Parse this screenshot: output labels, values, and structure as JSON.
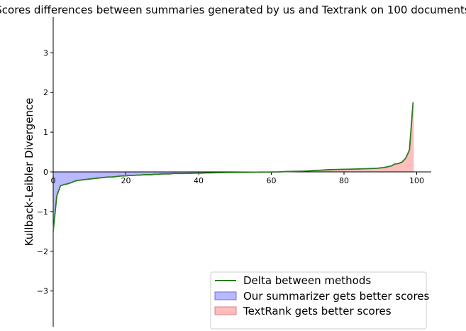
{
  "chart_data": {
    "type": "line",
    "title": "Scores differences between summaries generated by us and Textrank on 100 documents",
    "xlabel": "",
    "ylabel": "Kullback-Leibler Divergence",
    "xlim": [
      0,
      104
    ],
    "ylim": [
      -3.9,
      3.9
    ],
    "xticks": [
      0,
      20,
      40,
      60,
      80,
      100
    ],
    "yticks": [
      -3,
      -2,
      -1,
      0,
      1,
      2,
      3
    ],
    "grid": false,
    "legend_position": "lower-right",
    "colors": {
      "line": "#2a7a1e",
      "negative_fill": "#b9b9ff",
      "negative_edge": "#6f6fe6",
      "positive_fill": "#ffbdbd",
      "positive_edge": "#e08080"
    },
    "series": [
      {
        "name": "Delta between methods",
        "x": [
          0,
          1,
          2,
          3,
          4,
          5,
          6,
          7,
          8,
          9,
          10,
          11,
          12,
          13,
          14,
          15,
          16,
          17,
          18,
          19,
          20,
          21,
          22,
          23,
          24,
          25,
          26,
          27,
          28,
          29,
          30,
          31,
          32,
          33,
          34,
          35,
          36,
          37,
          38,
          39,
          40,
          41,
          42,
          43,
          44,
          45,
          46,
          47,
          48,
          49,
          50,
          51,
          52,
          53,
          54,
          55,
          56,
          57,
          58,
          59,
          60,
          61,
          62,
          63,
          64,
          65,
          66,
          67,
          68,
          69,
          70,
          71,
          72,
          73,
          74,
          75,
          76,
          77,
          78,
          79,
          80,
          81,
          82,
          83,
          84,
          85,
          86,
          87,
          88,
          89,
          90,
          91,
          92,
          93,
          94,
          95,
          96,
          97,
          98,
          99
        ],
        "values": [
          -1.5,
          -0.6,
          -0.35,
          -0.32,
          -0.3,
          -0.27,
          -0.23,
          -0.21,
          -0.2,
          -0.19,
          -0.18,
          -0.17,
          -0.16,
          -0.15,
          -0.14,
          -0.13,
          -0.13,
          -0.12,
          -0.11,
          -0.1,
          -0.1,
          -0.09,
          -0.09,
          -0.08,
          -0.08,
          -0.07,
          -0.07,
          -0.07,
          -0.06,
          -0.06,
          -0.05,
          -0.05,
          -0.05,
          -0.04,
          -0.04,
          -0.04,
          -0.04,
          -0.035,
          -0.035,
          -0.03,
          -0.03,
          -0.03,
          -0.025,
          -0.025,
          -0.022,
          -0.02,
          -0.02,
          -0.018,
          -0.016,
          -0.015,
          -0.013,
          -0.012,
          -0.011,
          -0.01,
          -0.009,
          -0.008,
          -0.007,
          -0.006,
          -0.005,
          -0.004,
          -0.003,
          -0.002,
          0.0,
          0.005,
          0.008,
          0.01,
          0.012,
          0.015,
          0.018,
          0.02,
          0.025,
          0.03,
          0.035,
          0.04,
          0.045,
          0.05,
          0.055,
          0.058,
          0.06,
          0.062,
          0.065,
          0.067,
          0.07,
          0.072,
          0.075,
          0.078,
          0.08,
          0.083,
          0.087,
          0.09,
          0.1,
          0.11,
          0.13,
          0.15,
          0.2,
          0.21,
          0.25,
          0.35,
          0.55,
          1.75
        ]
      }
    ],
    "legend": [
      {
        "label": "Delta between methods",
        "kind": "line"
      },
      {
        "label": "Our summarizer gets better scores",
        "kind": "negative_fill"
      },
      {
        "label": "TextRank gets better scores",
        "kind": "positive_fill"
      }
    ]
  }
}
